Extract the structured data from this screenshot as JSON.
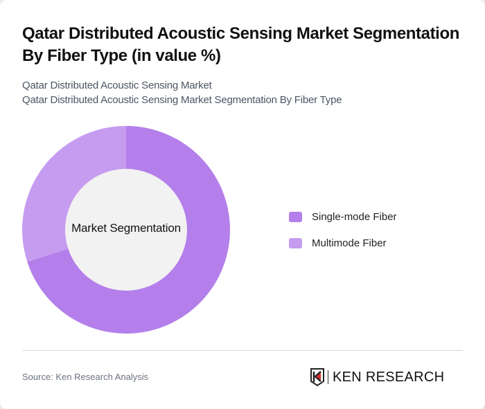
{
  "header": {
    "title": "Qatar Distributed Acoustic Sensing Market Segmentation By Fiber Type (in value %)",
    "subtitle_line1": "Qatar Distributed Acoustic Sensing Market",
    "subtitle_line2": "Qatar Distributed Acoustic Sensing Market Segmentation By Fiber Type"
  },
  "chart": {
    "center_label": "Market Segmentation"
  },
  "legend": {
    "items": [
      {
        "label": "Single-mode Fiber",
        "color": "#b47fea"
      },
      {
        "label": "Multimode Fiber",
        "color": "#c69cf0"
      }
    ]
  },
  "footer": {
    "source": "Source: Ken Research Analysis",
    "logo_text": "KEN RESEARCH"
  },
  "chart_data": {
    "type": "pie",
    "variant": "donut",
    "title": "Qatar Distributed Acoustic Sensing Market Segmentation By Fiber Type (in value %)",
    "center_label": "Market Segmentation",
    "categories": [
      "Single-mode Fiber",
      "Multimode Fiber"
    ],
    "values": [
      70,
      30
    ],
    "colors": [
      "#b47fea",
      "#c69cf0"
    ],
    "start_angle_deg": 0,
    "direction": "clockwise",
    "legend_position": "right",
    "data_labels": false
  }
}
